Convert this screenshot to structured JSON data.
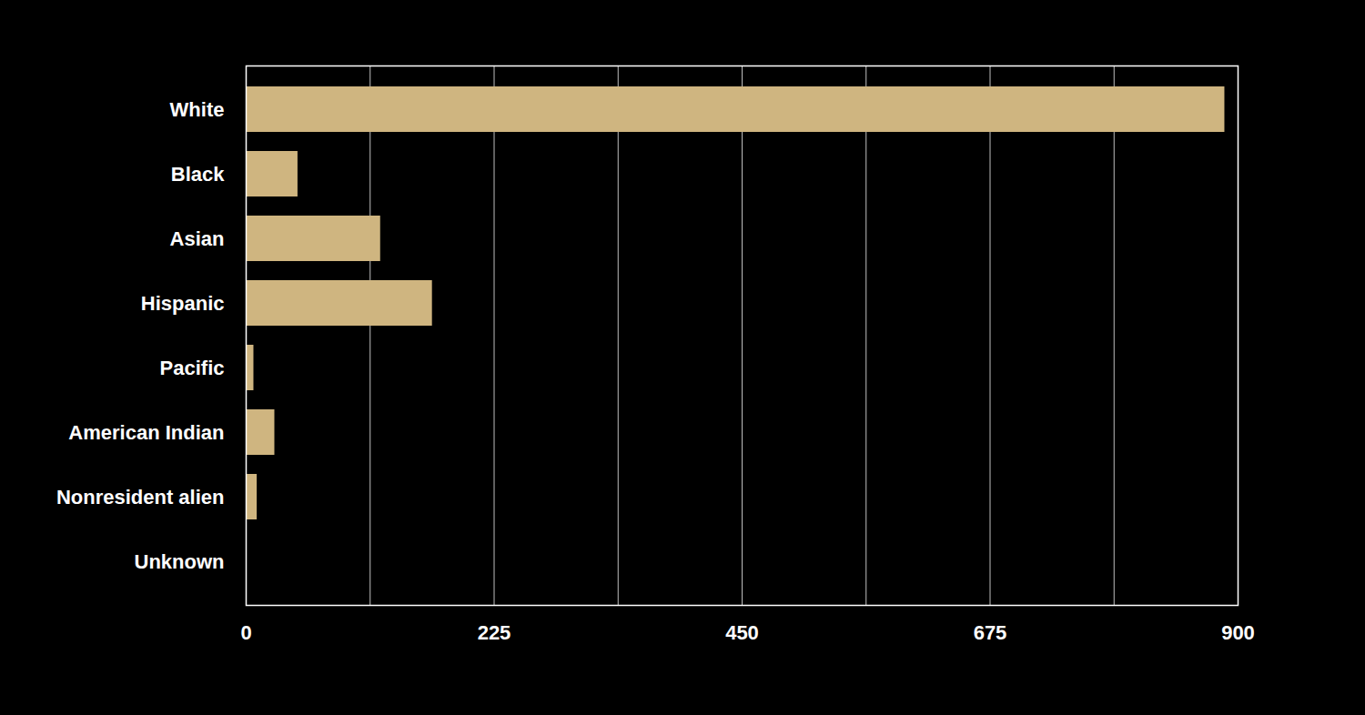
{
  "chart_data": {
    "type": "bar",
    "orientation": "horizontal",
    "categories": [
      "White",
      "Black",
      "Asian",
      "Hispanic",
      "Pacific",
      "American Indian",
      "Nonresident alien",
      "Unknown"
    ],
    "values": [
      888,
      47,
      122,
      169,
      7,
      26,
      10,
      0
    ],
    "color": "#cfb580",
    "xlim": [
      0,
      900
    ],
    "xticks": [
      0,
      225,
      450,
      675,
      900
    ],
    "grid": true
  }
}
